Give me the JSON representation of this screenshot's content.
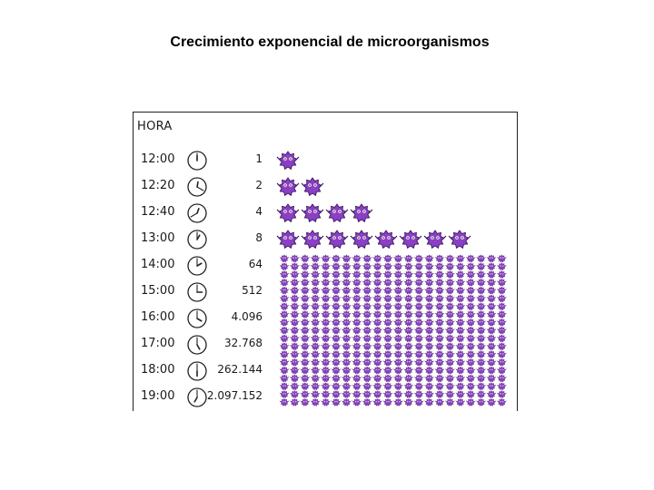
{
  "slide": {
    "title": "Crecimiento exponencial de microorganismos"
  },
  "table": {
    "header": "HORA",
    "rows": [
      {
        "time": "12:00",
        "count": "1",
        "minutes": 0
      },
      {
        "time": "12:20",
        "count": "2",
        "minutes": 20
      },
      {
        "time": "12:40",
        "count": "4",
        "minutes": 40
      },
      {
        "time": "13:00",
        "count": "8",
        "minutes": 0
      },
      {
        "time": "14:00",
        "count": "64",
        "minutes": 0
      },
      {
        "time": "15:00",
        "count": "512",
        "minutes": 0
      },
      {
        "time": "16:00",
        "count": "4.096",
        "minutes": 0
      },
      {
        "time": "17:00",
        "count": "32.768",
        "minutes": 0
      },
      {
        "time": "18:00",
        "count": "262.144",
        "minutes": 0
      },
      {
        "time": "19:00",
        "count": "2.097.152",
        "minutes": 0
      }
    ]
  },
  "organism_color": "#8a3fc4",
  "organism_outline": "#3b1760"
}
